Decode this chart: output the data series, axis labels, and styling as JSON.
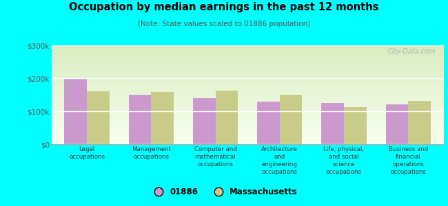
{
  "title": "Occupation by median earnings in the past 12 months",
  "subtitle": "(Note: State values scaled to 01886 population)",
  "categories": [
    "Legal\noccupations",
    "Management\noccupations",
    "Computer and\nmathematical\noccupations",
    "Architecture\nand\nengineering\noccupations",
    "Life, physical,\nand social\nscience\noccupations",
    "Business and\nfinancial\noperations\noccupations"
  ],
  "values_01886": [
    200000,
    150000,
    140000,
    130000,
    125000,
    120000
  ],
  "values_mass": [
    160000,
    158000,
    163000,
    150000,
    112000,
    132000
  ],
  "bar_color_01886": "#cc99cc",
  "bar_color_mass": "#c8cc88",
  "background_color": "#00ffff",
  "plot_bg_top": "#d8edc0",
  "plot_bg_bottom": "#f8fff0",
  "ylim": [
    0,
    300000
  ],
  "yticks": [
    0,
    100000,
    200000,
    300000
  ],
  "ytick_labels": [
    "$0",
    "$100k",
    "$200k",
    "$300k"
  ],
  "legend_labels": [
    "01886",
    "Massachusetts"
  ],
  "watermark": "City-Data.com",
  "bar_width": 0.35
}
